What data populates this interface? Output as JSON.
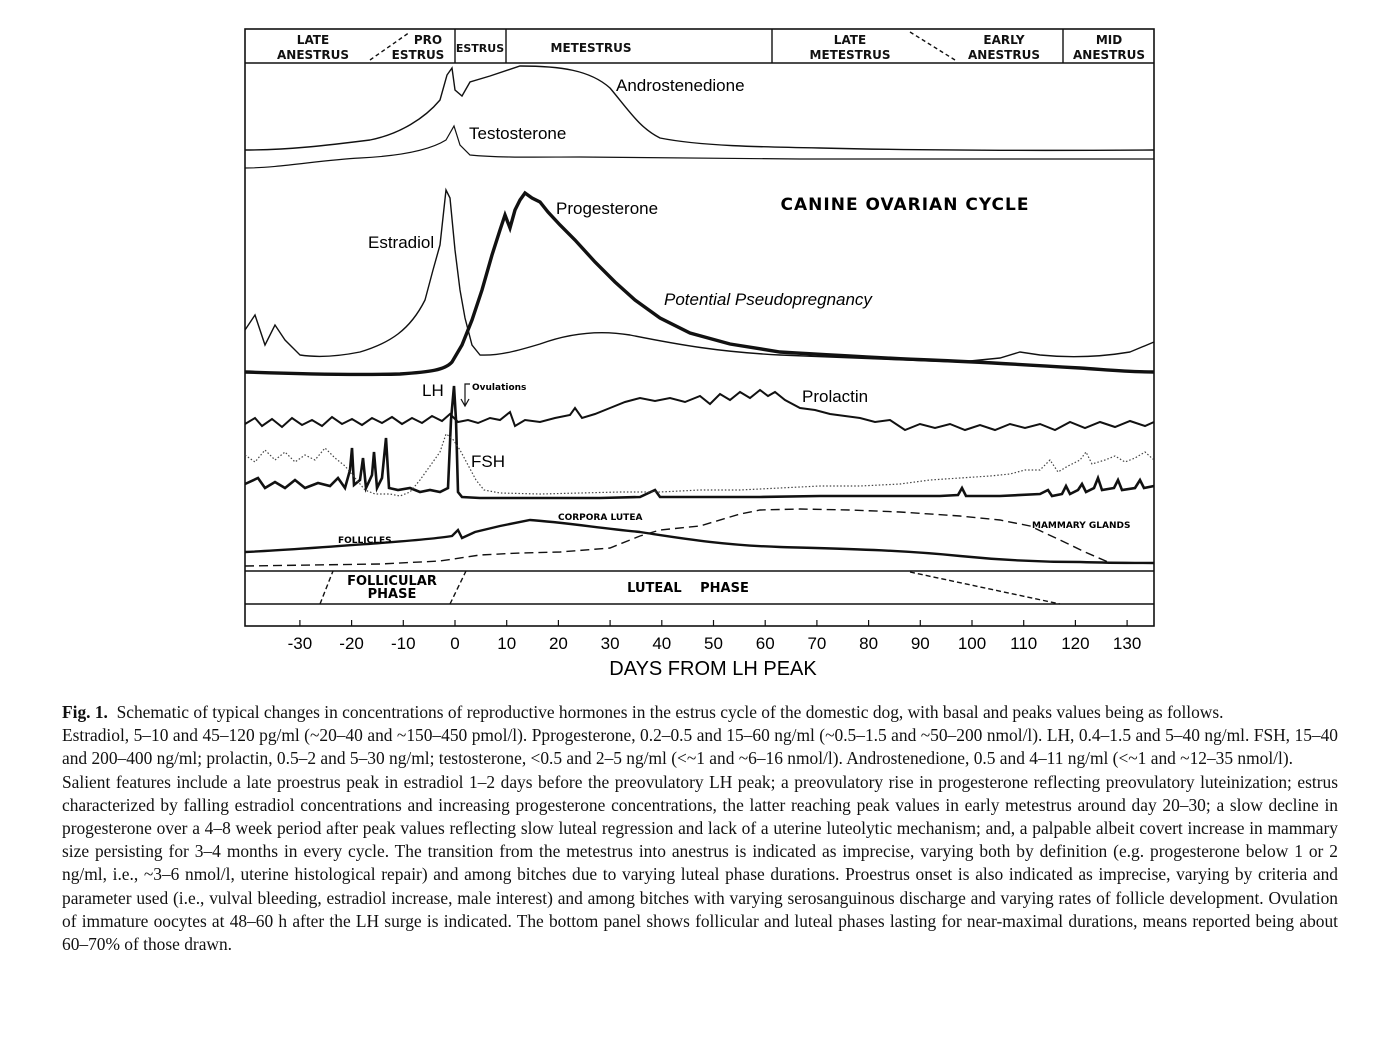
{
  "figure": {
    "stage_labels": [
      {
        "line1": "LATE",
        "line2": "ANESTRUS"
      },
      {
        "line1": "PRO",
        "line2": "ESTRUS"
      },
      {
        "line1": "ESTRUS",
        "line2": ""
      },
      {
        "line1": "METESTRUS",
        "line2": ""
      },
      {
        "line1": "LATE",
        "line2": "METESTRUS"
      },
      {
        "line1": "EARLY",
        "line2": "ANESTRUS"
      },
      {
        "line1": "MID",
        "line2": "ANESTRUS"
      }
    ],
    "title": "CANINE OVARIAN CYCLE",
    "curve_labels": {
      "androstenedione": "Androstenedione",
      "testosterone": "Testosterone",
      "progesterone": "Progesterone",
      "estradiol": "Estradiol",
      "pseudopregnancy": "Potential Pseudopregnancy",
      "lh": "LH",
      "ovulations": "Ovulations",
      "prolactin": "Prolactin",
      "fsh": "FSH",
      "corpora_lutea": "CORPORA LUTEA",
      "follicles": "FOLLICLES",
      "mammary_glands": "MAMMARY GLANDS"
    },
    "phases": {
      "follicular_line1": "FOLLICULAR",
      "follicular_line2": "PHASE",
      "luteal": "LUTEAL PHASE"
    },
    "x_ticks": [
      "-30",
      "-20",
      "-10",
      "0",
      "10",
      "20",
      "30",
      "40",
      "50",
      "60",
      "70",
      "80",
      "90",
      "100",
      "110",
      "120",
      "130"
    ],
    "x_label": "DAYS FROM LH PEAK",
    "colors": {
      "ink": "#111111",
      "background": "#ffffff"
    }
  },
  "chart_data": {
    "type": "line",
    "title": "CANINE OVARIAN CYCLE",
    "xlabel": "DAYS FROM LH PEAK",
    "ylabel": "",
    "xlim": [
      -40,
      135
    ],
    "x": [
      -35,
      -30,
      -20,
      -10,
      -5,
      -2,
      0,
      2,
      5,
      10,
      15,
      20,
      30,
      40,
      50,
      60,
      70,
      80,
      90,
      100,
      110,
      120,
      130,
      135
    ],
    "series": [
      {
        "name": "Androstenedione",
        "values": [
          0.12,
          0.12,
          0.13,
          0.2,
          0.35,
          0.6,
          1.0,
          0.85,
          0.9,
          0.95,
          1.0,
          0.98,
          0.85,
          0.45,
          0.2,
          0.12,
          0.1,
          0.08,
          0.08,
          0.08,
          0.08,
          0.08,
          0.09,
          0.09
        ]
      },
      {
        "name": "Testosterone",
        "values": [
          0.1,
          0.1,
          0.1,
          0.2,
          0.3,
          0.4,
          0.7,
          0.4,
          0.3,
          0.3,
          0.25,
          0.2,
          0.18,
          0.15,
          0.12,
          0.1,
          0.1,
          0.1,
          0.1,
          0.1,
          0.1,
          0.1,
          0.1,
          0.1
        ]
      },
      {
        "name": "Progesterone",
        "values": [
          0.0,
          0.0,
          0.0,
          0.0,
          0.01,
          0.04,
          0.12,
          0.3,
          0.55,
          0.85,
          0.95,
          0.92,
          0.8,
          0.55,
          0.35,
          0.22,
          0.12,
          0.08,
          0.06,
          0.04,
          0.03,
          0.02,
          0.02,
          0.02
        ]
      },
      {
        "name": "Estradiol",
        "values": [
          0.25,
          0.28,
          0.15,
          0.22,
          0.4,
          0.85,
          0.95,
          0.35,
          0.12,
          0.08,
          0.12,
          0.15,
          0.22,
          0.22,
          0.18,
          0.15,
          0.12,
          0.12,
          0.12,
          0.12,
          0.12,
          0.14,
          0.17,
          0.2
        ]
      },
      {
        "name": "Prolactin",
        "values": [
          0.2,
          0.22,
          0.24,
          0.22,
          0.25,
          0.28,
          0.28,
          0.3,
          0.3,
          0.35,
          0.35,
          0.35,
          0.45,
          0.6,
          0.7,
          0.75,
          0.6,
          0.4,
          0.32,
          0.3,
          0.28,
          0.3,
          0.32,
          0.32
        ]
      },
      {
        "name": "LH",
        "values": [
          0.05,
          0.1,
          0.3,
          0.3,
          0.1,
          0.4,
          1.0,
          0.15,
          0.06,
          0.05,
          0.05,
          0.05,
          0.05,
          0.06,
          0.05,
          0.05,
          0.05,
          0.05,
          0.05,
          0.05,
          0.08,
          0.12,
          0.18,
          0.15
        ]
      },
      {
        "name": "FSH",
        "values": [
          0.3,
          0.35,
          0.25,
          0.2,
          0.3,
          0.45,
          0.8,
          0.5,
          0.2,
          0.08,
          0.08,
          0.08,
          0.1,
          0.1,
          0.1,
          0.12,
          0.15,
          0.2,
          0.25,
          0.3,
          0.35,
          0.4,
          0.4,
          0.38
        ]
      },
      {
        "name": "FOLLICLES / CORPORA LUTEA",
        "values": [
          0.1,
          0.12,
          0.2,
          0.35,
          0.5,
          0.6,
          0.85,
          0.95,
          0.9,
          0.95,
          1.0,
          0.95,
          0.85,
          0.7,
          0.55,
          0.48,
          0.45,
          0.42,
          0.38,
          0.3,
          0.2,
          0.12,
          0.08,
          0.08
        ]
      },
      {
        "name": "MAMMARY GLANDS",
        "values": [
          0.08,
          0.08,
          0.08,
          0.08,
          0.08,
          0.1,
          0.15,
          0.18,
          0.18,
          0.2,
          0.22,
          0.3,
          0.55,
          0.75,
          0.9,
          0.95,
          0.95,
          0.92,
          0.9,
          0.85,
          0.55,
          0.2,
          0.1,
          0.1
        ]
      }
    ],
    "grid": false,
    "legend": "none"
  },
  "caption": {
    "fig_label": "Fig. 1.",
    "p1": "Schematic of typical changes in concentrations of reproductive hormones in the estrus cycle of the domestic dog, with basal and peaks values being as follows.",
    "p2": "Estradiol, 5–10 and 45–120 pg/ml (~20–40 and ~150–450 pmol/l). Pprogesterone, 0.2–0.5 and 15–60 ng/ml (~0.5–1.5 and ~50–200 nmol/l). LH, 0.4–1.5 and 5–40 ng/ml. FSH, 15–40 and 200–400 ng/ml; prolactin, 0.5–2 and 5–30 ng/ml; testosterone, <0.5 and 2–5 ng/ml (<~1 and ~6–16 nmol/l). Androstenedione, 0.5 and 4–11 ng/ml (<~1 and ~12–35 nmol/l).",
    "p3": "Salient features include a late proestrus peak in estradiol 1–2 days before the preovulatory LH peak; a preovulatory rise in progesterone reflecting preovulatory luteinization; estrus characterized by falling estradiol concentrations and increasing progesterone concentrations, the latter reaching peak values in early metestrus around day 20–30; a slow decline in progesterone over a 4–8 week period after peak values reflecting slow luteal regression and lack of a uterine luteolytic mechanism; and, a palpable albeit covert increase in mammary size persisting for 3–4 months in every cycle. The transition from the metestrus into anestrus is indicated as imprecise, varying both by definition (e.g. progesterone below 1 or 2 ng/ml, i.e., ~3–6 nmol/l, uterine histological repair) and among bitches due to varying luteal phase durations. Proestrus onset is also indicated as imprecise, varying by criteria and parameter used (i.e., vulval bleeding, estradiol increase, male interest) and among bitches with varying serosanguinous discharge and varying rates of follicle development. Ovulation of immature oocytes at 48–60 h after the LH surge is indicated. The bottom panel shows follicular and luteal phases lasting for near-maximal durations, means reported being about 60–70% of those drawn."
  }
}
